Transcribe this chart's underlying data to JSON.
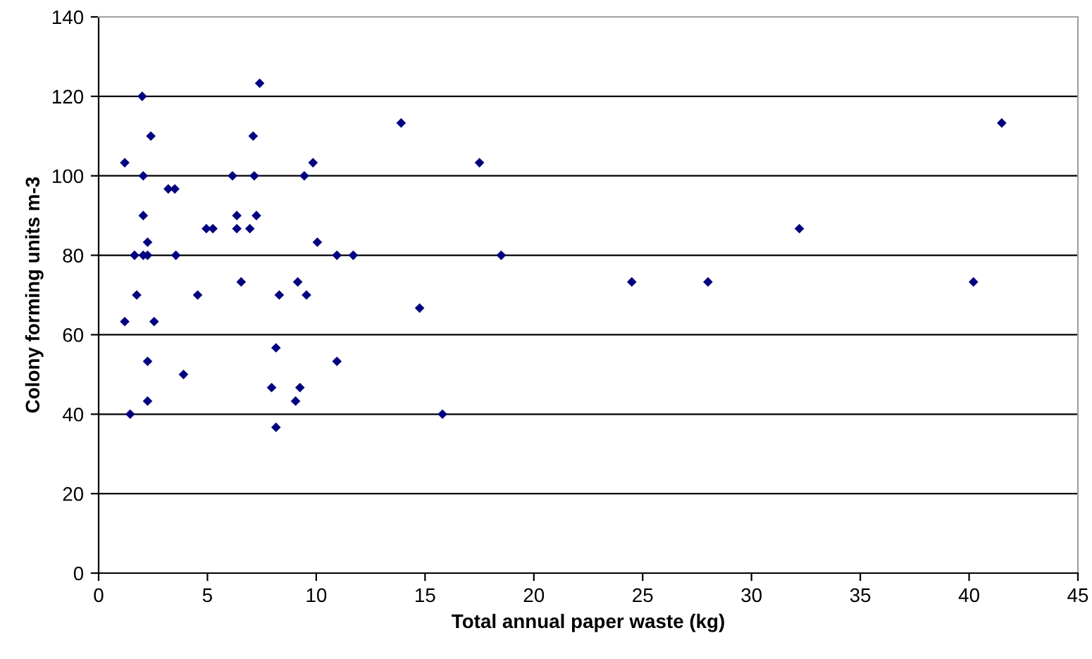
{
  "chart_data": {
    "type": "scatter",
    "xlabel": "Total annual paper waste (kg)",
    "ylabel": "Colony forming units m-3",
    "x": [
      1.2,
      2.05,
      3.2,
      3.5,
      6.15,
      7.15,
      9.45,
      9.85,
      2.05,
      4.95,
      5.25,
      6.35,
      7.25,
      6.35,
      6.95,
      2.25,
      10.05,
      1.65,
      2.05,
      2.25,
      3.55,
      6.55,
      9.15,
      1.75,
      4.55,
      8.3,
      9.55,
      1.2,
      2.55,
      8.15,
      2.25,
      3.9,
      7.95,
      9.25,
      9.05,
      2.25,
      1.45,
      2.0,
      2.4,
      7.4,
      7.1,
      8.15,
      17.5,
      10.95,
      11.7,
      18.5,
      14.75,
      10.95,
      15.8,
      13.9,
      32.2,
      24.5,
      28.0,
      40.2,
      41.5
    ],
    "values": [
      103.3,
      100,
      96.7,
      96.7,
      100,
      100,
      100,
      103.3,
      90,
      86.7,
      86.7,
      90,
      90,
      86.7,
      86.7,
      83.3,
      83.3,
      80,
      80,
      80,
      80,
      73.3,
      73.3,
      70,
      70,
      70,
      70,
      63.3,
      63.3,
      56.7,
      53.3,
      50,
      46.7,
      46.7,
      43.3,
      43.3,
      40,
      120,
      110,
      123.3,
      110,
      36.7,
      103.3,
      80,
      80,
      80,
      66.7,
      53.3,
      40,
      113.3,
      86.7,
      73.3,
      73.3,
      73.3,
      113.3
    ],
    "color": "#000080",
    "marker": "diamond",
    "xlim": [
      0,
      45
    ],
    "xticks": [
      0,
      5,
      10,
      15,
      20,
      25,
      30,
      35,
      40,
      45
    ],
    "ylim": [
      0,
      140
    ],
    "yticks": [
      0,
      20,
      40,
      60,
      80,
      100,
      120,
      140
    ],
    "grid": "y"
  }
}
